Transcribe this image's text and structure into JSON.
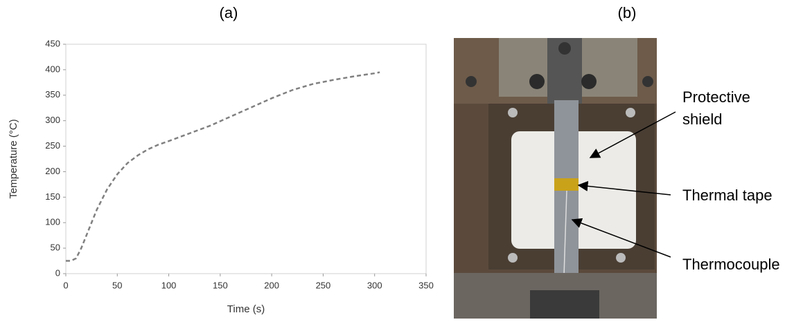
{
  "chart_data": {
    "type": "line",
    "title": "(a)",
    "x_label": "Time (s)",
    "y_label": "Temperature (°C)",
    "x": [
      0,
      5,
      10,
      15,
      20,
      25,
      30,
      40,
      50,
      60,
      70,
      80,
      90,
      100,
      120,
      140,
      160,
      180,
      200,
      220,
      240,
      260,
      280,
      300,
      305
    ],
    "series": [
      {
        "color": "#808080",
        "values": [
          25,
          25,
          30,
          50,
          75,
          100,
          125,
          165,
          195,
          217,
          232,
          244,
          253,
          260,
          275,
          290,
          308,
          326,
          344,
          360,
          372,
          380,
          387,
          393,
          395
        ]
      }
    ],
    "xlim": [
      0,
      350
    ],
    "xticks": [
      0,
      50,
      100,
      150,
      200,
      250,
      300,
      350
    ],
    "ylim": [
      0,
      450
    ],
    "yticks": [
      0,
      50,
      100,
      150,
      200,
      250,
      300,
      350,
      400,
      450
    ],
    "dashed": true
  },
  "photo": {
    "label": "(b)",
    "annotations": [
      {
        "lines": [
          "Protective",
          "shield"
        ]
      },
      {
        "lines": [
          "Thermal tape"
        ]
      },
      {
        "lines": [
          "Thermocouple"
        ]
      }
    ]
  }
}
